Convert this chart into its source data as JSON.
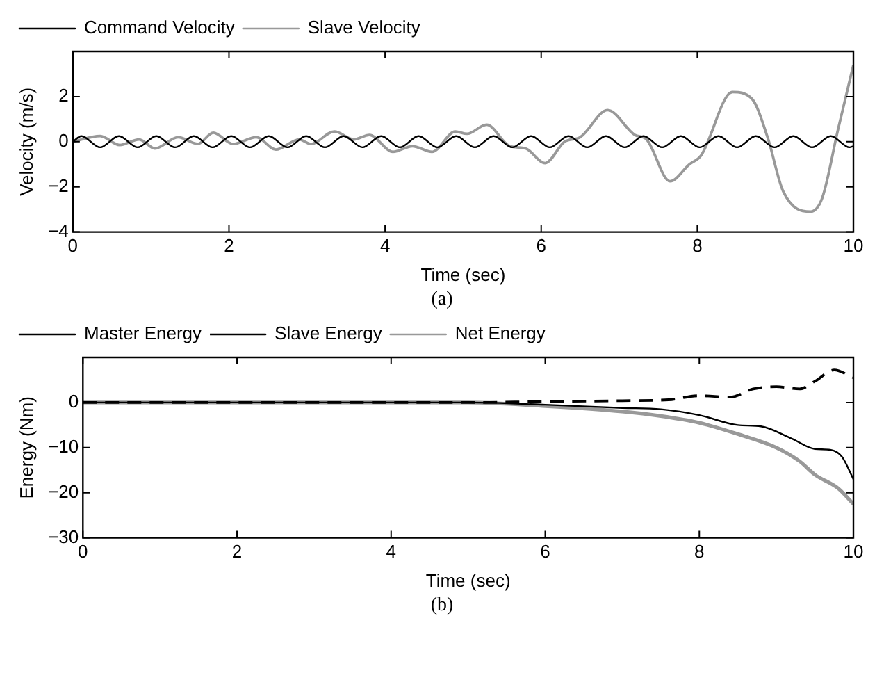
{
  "chart_data": [
    {
      "type": "line",
      "xlabel": "Time (sec)",
      "ylabel": "Velocity (m/s)",
      "annotations": [
        "(a)"
      ],
      "xlim": [
        0,
        10
      ],
      "xticks": [
        0,
        2,
        4,
        6,
        8,
        10
      ],
      "ylim": [
        -4,
        4
      ],
      "yticks": [
        -4,
        -2,
        0,
        2
      ],
      "grid": false,
      "legend": "top left",
      "marker": "none",
      "series": [
        {
          "name": "Command Velocity",
          "color": "#000000",
          "line_style": "solid",
          "x": [
            0,
            0.11,
            0.35,
            0.59,
            0.83,
            1.07,
            1.31,
            1.55,
            1.79,
            2.03,
            2.27,
            2.51,
            2.75,
            2.99,
            3.23,
            3.47,
            3.71,
            3.95,
            4.19,
            4.43,
            4.67,
            4.91,
            5.15,
            5.39,
            5.63,
            5.87,
            6.11,
            6.35,
            6.59,
            6.83,
            7.07,
            7.31,
            7.55,
            7.79,
            8.03,
            8.27,
            8.51,
            8.75,
            8.99,
            9.23,
            9.47,
            9.71,
            9.95,
            10
          ],
          "values": [
            0,
            0.25,
            -0.25,
            0.25,
            -0.25,
            0.25,
            -0.25,
            0.25,
            -0.25,
            0.25,
            -0.25,
            0.25,
            -0.25,
            0.25,
            -0.25,
            0.25,
            -0.25,
            0.25,
            -0.25,
            0.25,
            -0.25,
            0.25,
            -0.25,
            0.25,
            -0.25,
            0.25,
            -0.25,
            0.25,
            -0.25,
            0.25,
            -0.25,
            0.25,
            -0.25,
            0.25,
            -0.25,
            0.25,
            -0.25,
            0.25,
            -0.25,
            0.25,
            -0.25,
            0.25,
            -0.25,
            -0.2
          ]
        },
        {
          "name": "Slave Velocity",
          "color": "#999999",
          "line_style": "solid",
          "x": [
            0,
            0.35,
            0.6,
            0.85,
            1.05,
            1.35,
            1.6,
            1.8,
            2.05,
            2.35,
            2.6,
            2.9,
            3.05,
            3.35,
            3.6,
            3.8,
            4.1,
            4.35,
            4.6,
            4.9,
            5.05,
            5.3,
            5.6,
            5.8,
            6.05,
            6.3,
            6.5,
            6.85,
            7.2,
            7.35,
            7.65,
            7.9,
            8.05,
            8.45,
            8.7,
            8.9,
            9.1,
            9.45,
            9.6,
            9.8,
            10
          ],
          "values": [
            0,
            0.25,
            -0.15,
            0.1,
            -0.3,
            0.2,
            -0.1,
            0.4,
            -0.1,
            0.2,
            -0.35,
            0.1,
            -0.1,
            0.45,
            0.1,
            0.3,
            -0.45,
            -0.2,
            -0.45,
            0.45,
            0.35,
            0.75,
            -0.2,
            -0.3,
            -0.95,
            0,
            0.2,
            1.4,
            0.3,
            0.1,
            -1.75,
            -1,
            -0.6,
            2.2,
            1.9,
            0.2,
            -2.2,
            -3.1,
            -2.5,
            0.5,
            3.4
          ]
        }
      ]
    },
    {
      "type": "line",
      "xlabel": "Time (sec)",
      "ylabel": "Energy (Nm)",
      "annotations": [
        "(b)"
      ],
      "xlim": [
        0,
        10
      ],
      "xticks": [
        0,
        2,
        4,
        6,
        8,
        10
      ],
      "ylim": [
        -30,
        10
      ],
      "yticks": [
        -30,
        -20,
        -10,
        0
      ],
      "grid": false,
      "legend": "top left",
      "marker": "none",
      "series": [
        {
          "name": "Master Energy",
          "color": "#000000",
          "line_style": "solid",
          "x": [
            0,
            5,
            6,
            7,
            7.5,
            8,
            8.5,
            8.8,
            9.2,
            9.5,
            9.7,
            9.85,
            10
          ],
          "values": [
            0,
            0,
            -0.5,
            -1.2,
            -1.5,
            -2.8,
            -5,
            -5.3,
            -8,
            -10.3,
            -10.5,
            -12,
            -17
          ]
        },
        {
          "name": "Slave Energy",
          "color": "#000000",
          "line_style": "dashed",
          "x": [
            0,
            5,
            6,
            7,
            7.6,
            8,
            8.4,
            8.7,
            9,
            9.3,
            9.5,
            9.75,
            10
          ],
          "values": [
            0,
            0,
            0.2,
            0.4,
            0.6,
            1.5,
            1.2,
            3,
            3.5,
            3,
            4.7,
            7.2,
            5.5
          ]
        },
        {
          "name": "Net Energy",
          "color": "#999999",
          "line_style": "solid",
          "x": [
            0,
            5,
            6,
            7,
            7.5,
            8,
            8.5,
            9,
            9.3,
            9.5,
            9.8,
            10
          ],
          "values": [
            0,
            0,
            -0.8,
            -2,
            -3,
            -4.5,
            -7,
            -10,
            -13,
            -16,
            -19,
            -22.5
          ]
        }
      ]
    }
  ]
}
